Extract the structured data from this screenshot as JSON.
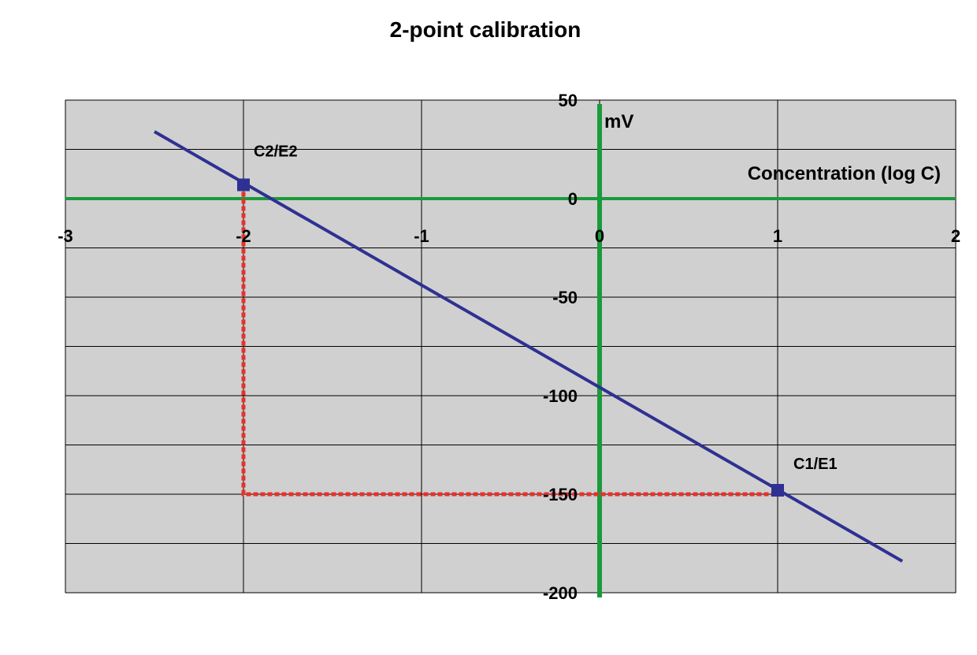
{
  "chart_data": {
    "type": "line",
    "title": "2-point calibration",
    "xlabel": "Concentration (log C)",
    "ylabel": "mV",
    "xlim": [
      -3,
      2
    ],
    "ylim": [
      -200,
      50
    ],
    "x_ticks": [
      -3,
      -2,
      -1,
      0,
      1,
      2
    ],
    "y_ticks": [
      50,
      0,
      -50,
      -100,
      -150,
      -200
    ],
    "grid": true,
    "series": [
      {
        "x": [
          -2.5,
          1.7
        ],
        "y": [
          34,
          -184
        ],
        "color": "#2E3192"
      }
    ],
    "points": [
      {
        "label": "C2/E2",
        "x": -2,
        "y": 7
      },
      {
        "label": "C1/E1",
        "x": 1,
        "y": -148
      }
    ],
    "guide_lines": [
      {
        "x": [
          -2,
          -2,
          1
        ],
        "y": [
          7,
          -150,
          -150
        ],
        "color": "#E8312A"
      }
    ],
    "colors": {
      "plot_background": "#D0D0D0",
      "grid": "#000000",
      "axes": "#1A9A3A",
      "line": "#2E3192",
      "guide": "#E8312A"
    }
  }
}
